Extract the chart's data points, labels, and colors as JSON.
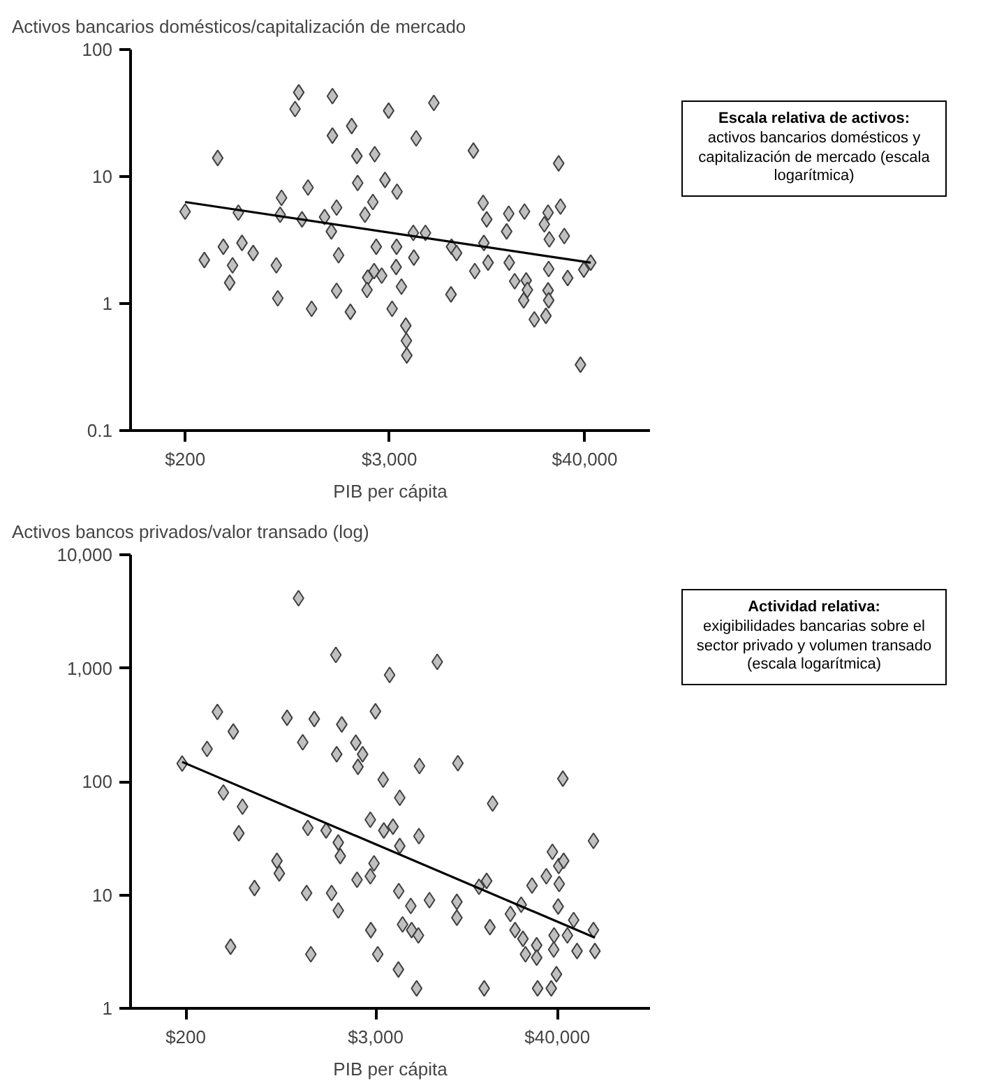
{
  "chart_data": [
    {
      "type": "scatter",
      "title": "Activos bancarios domésticos/capitalización de mercado",
      "xlabel": "PIB per cápita",
      "log": "xy",
      "grid": false,
      "xlim": [
        97,
        95000
      ],
      "xticks": [
        {
          "value": 200,
          "label": "$200"
        },
        {
          "value": 3000,
          "label": "$3,000"
        },
        {
          "value": 40000,
          "label": "$40,000"
        }
      ],
      "ylim": [
        0.1,
        100
      ],
      "yticks": [
        0.1,
        1,
        10,
        100
      ],
      "annotations": [
        "Escala relativa de activos:",
        "activos bancarios domésticos y capitalización de mercado (escala logarítmica)"
      ],
      "series": [
        {
          "marker": "diamond",
          "color": "#c0c0c0",
          "x": [
            200,
            258,
            308,
            332,
            375,
            361,
            405,
            425,
            493,
            670,
            683,
            718,
            705,
            859,
            902,
            942,
            1020,
            1070,
            1270,
            1390,
            1410,
            1410,
            1490,
            1530,
            1490,
            1790,
            1820,
            1950,
            1970,
            2170,
            2410,
            2470,
            2520,
            2250,
            2230,
            2450,
            2710,
            2830,
            2970,
            3320,
            3300,
            3280,
            3520,
            3110,
            3730,
            3760,
            3780,
            4150,
            4120,
            4280,
            4840,
            5410,
            6790,
            6840,
            7310,
            9140,
            9310,
            10400,
            10900,
            10500,
            11100,
            14200,
            14600,
            14700,
            15800,
            18000,
            18400,
            18700,
            17800,
            20500,
            23400,
            24600,
            25000,
            24800,
            24600,
            24800,
            23900,
            28300,
            29000,
            30500,
            31900,
            37800,
            39500,
            43300
          ],
          "values": [
            5.3,
            2.2,
            14,
            2.8,
            2.0,
            1.46,
            5.2,
            3.0,
            2.5,
            2.0,
            1.1,
            6.8,
            5.0,
            34,
            46,
            4.6,
            8.2,
            0.91,
            4.8,
            3.7,
            43,
            21,
            5.7,
            2.4,
            1.26,
            0.86,
            25,
            14.5,
            8.9,
            5.0,
            6.3,
            15,
            2.8,
            1.6,
            1.28,
            1.8,
            1.66,
            9.4,
            33,
            7.6,
            2.8,
            1.94,
            1.36,
            0.91,
            0.67,
            0.51,
            0.39,
            2.3,
            3.6,
            20,
            3.6,
            38,
            1.18,
            2.8,
            2.5,
            16,
            1.8,
            6.2,
            4.6,
            3.0,
            2.1,
            3.7,
            5.1,
            2.1,
            1.5,
            5.3,
            1.52,
            1.28,
            1.06,
            0.75,
            4.2,
            5.2,
            3.2,
            1.87,
            1.27,
            1.06,
            0.8,
            12.7,
            5.8,
            3.4,
            1.59,
            0.33,
            1.85,
            2.1
          ]
        },
        {
          "type": "line",
          "marker": "none",
          "color": "#000000",
          "line_style": "solid",
          "x": [
            200,
            43300
          ],
          "values": [
            6.3,
            2.1
          ]
        }
      ]
    },
    {
      "type": "scatter",
      "title": "Activos bancos privados/valor transado (log)",
      "xlabel": "PIB per cápita",
      "log": "xy",
      "grid": false,
      "xlim": [
        91,
        150000
      ],
      "xticks": [
        {
          "value": 200,
          "label": "$200"
        },
        {
          "value": 3000,
          "label": "$3,000"
        },
        {
          "value": 40000,
          "label": "$40,000"
        }
      ],
      "ylim": [
        1,
        10000
      ],
      "yticks": [
        1,
        10,
        100,
        {
          "value": 1000,
          "label": "1,000"
        },
        {
          "value": 10000,
          "label": "10,000"
        }
      ],
      "annotations": [
        "Actividad relativa:",
        "exigibilidades bancarias sobre el sector privado y volumen transado (escala logarítmica)"
      ],
      "series": [
        {
          "marker": "diamond",
          "color": "#c0c0c0",
          "x": [
            190,
            271,
            314,
            394,
            342,
            449,
            426,
            533,
            379,
            734,
            759,
            848,
            1060,
            998,
            1140,
            1120,
            1190,
            1250,
            1480,
            1700,
            1720,
            1850,
            1760,
            1810,
            1600,
            1760,
            2260,
            2330,
            2490,
            2990,
            3660,
            3340,
            4230,
            2780,
            3370,
            3840,
            4230,
            2930,
            2780,
            2300,
            4170,
            4950,
            4400,
            5010,
            5520,
            2800,
            3090,
            4150,
            5560,
            5600,
            7220,
            6460,
            9690,
            9550,
            9550,
            15900,
            13100,
            14600,
            15300,
            20500,
            23900,
            21900,
            24500,
            25400,
            27900,
            29800,
            29800,
            34200,
            37300,
            40800,
            43800,
            41100,
            43300,
            40500,
            38200,
            38000,
            46200,
            50500,
            53000,
            67000,
            67000,
            68400,
            39500,
            5380,
            14100,
            30200,
            36700
          ],
          "values": [
            144,
            194,
            411,
            276,
            80,
            60,
            35,
            11.5,
            3.5,
            20,
            15.5,
            365,
            222,
            4140,
            39,
            10.4,
            3.0,
            356,
            37,
            1310,
            174,
            319,
            29,
            22,
            10.4,
            7.3,
            220,
            135,
            174,
            416,
            871,
            104,
            72,
            46,
            37,
            40,
            27,
            19,
            14.6,
            13.6,
            10.8,
            8.0,
            5.5,
            4.9,
            4.4,
            4.9,
            3.0,
            2.2,
            33,
            137,
            1135,
            9.0,
            145,
            8.7,
            6.3,
            64,
            11.8,
            13.3,
            5.2,
            6.8,
            8.2,
            4.9,
            4.1,
            3.0,
            12.1,
            3.6,
            2.8,
            14.6,
            24,
            18,
            20,
            12.5,
            106,
            7.9,
            4.4,
            3.3,
            4.4,
            6.0,
            3.2,
            30,
            4.9,
            3.2,
            2.0,
            1.5,
            1.5,
            1.5,
            1.5
          ]
        },
        {
          "type": "line",
          "marker": "none",
          "color": "#000000",
          "line_style": "solid",
          "x": [
            190,
            68400
          ],
          "values": [
            149,
            4.2
          ]
        }
      ]
    }
  ]
}
